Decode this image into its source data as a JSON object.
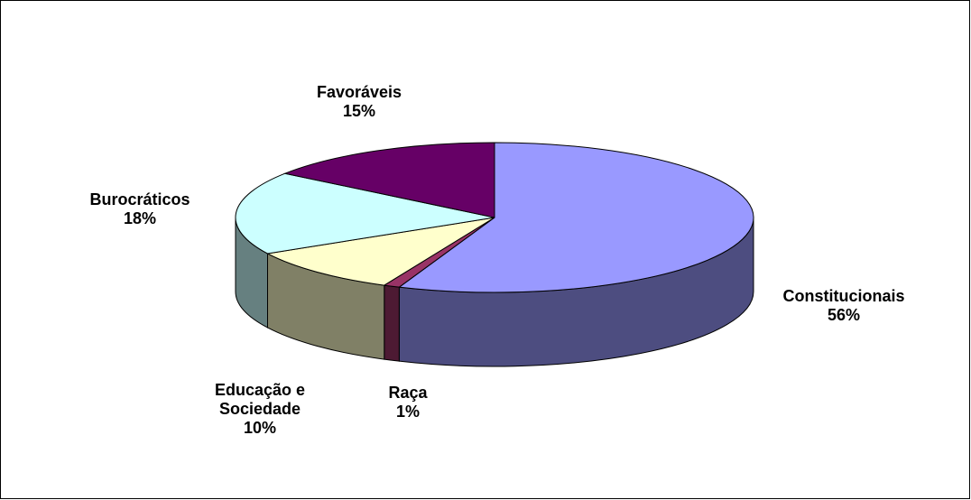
{
  "chart_data": {
    "type": "pie",
    "categories": [
      "Constitucionais",
      "Raça",
      "Educação e Sociedade",
      "Burocráticos",
      "Favoráveis"
    ],
    "values": [
      56,
      1,
      10,
      18,
      15
    ],
    "value_labels": [
      "56%",
      "1%",
      "10%",
      "18%",
      "15%"
    ],
    "colors": [
      "#9999ff",
      "#993366",
      "#ffffcc",
      "#ccffff",
      "#660066"
    ],
    "side_colors": [
      "#4d4d80",
      "#4d1a33",
      "#808066",
      "#668080",
      "#330033"
    ]
  }
}
